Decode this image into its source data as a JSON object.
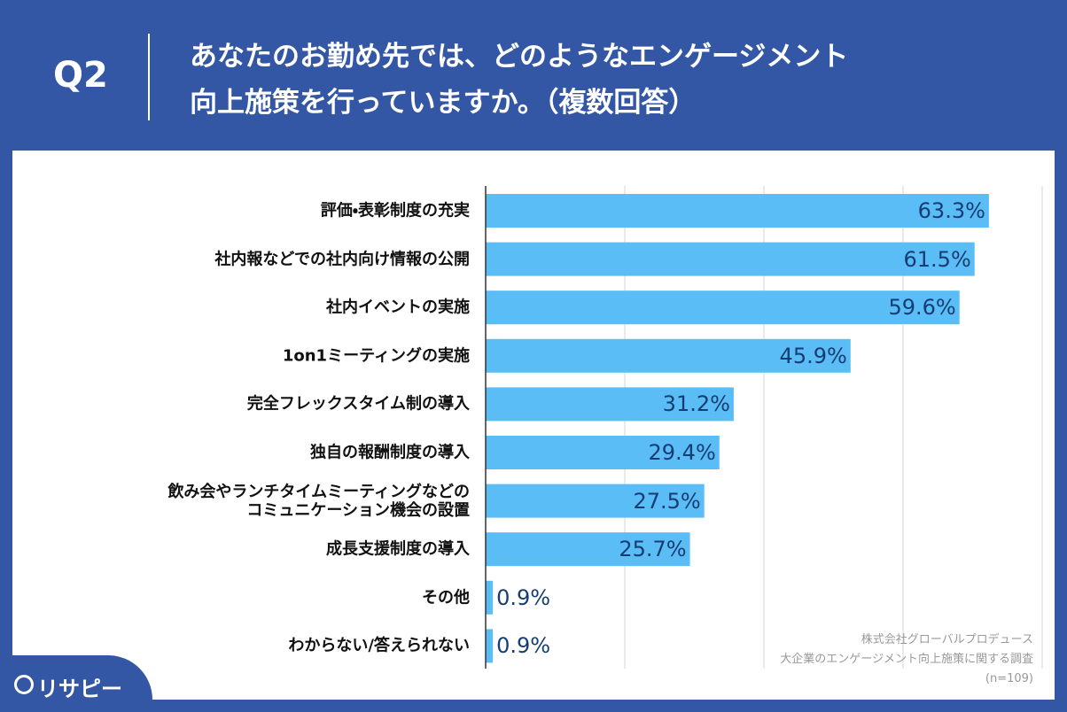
{
  "header": {
    "question": "Q2",
    "title": "あなたのお勤め先では、どのようなエンゲージメント\n向上施策を行っていますか。（複数回答）"
  },
  "chart_data": {
    "type": "barh",
    "categories": [
      "評価・表彰制度の充実",
      "社内報などでの社内向け情報の公開",
      "社内イベントの実施",
      "1on1ミーティングの実施",
      "完全フレックスタイム制の導入",
      "独自の報酬制度の導入",
      "飲み会やランチタイムミーティングなどの\nコミュニケーション機会の設置",
      "成長支援制度の導入",
      "その他",
      "わからない/答えられない"
    ],
    "values": [
      63.3,
      61.5,
      59.6,
      45.9,
      31.2,
      29.4,
      27.5,
      25.7,
      0.9,
      0.9
    ],
    "value_labels": [
      "63.3%",
      "61.5%",
      "59.6%",
      "45.9%",
      "31.2%",
      "29.4%",
      "27.5%",
      "25.7%",
      "0.9%",
      "0.9%"
    ],
    "color": "#5bbdf6",
    "xlim": [
      0,
      70
    ],
    "xticks": [
      0,
      17.5,
      35,
      52.5,
      70
    ],
    "grid": true
  },
  "source": [
    "株式会社グローバルプロデュース",
    "大企業のエンゲージメント向上施策に関する調査",
    "(n=109)"
  ],
  "logo": "リサピー"
}
